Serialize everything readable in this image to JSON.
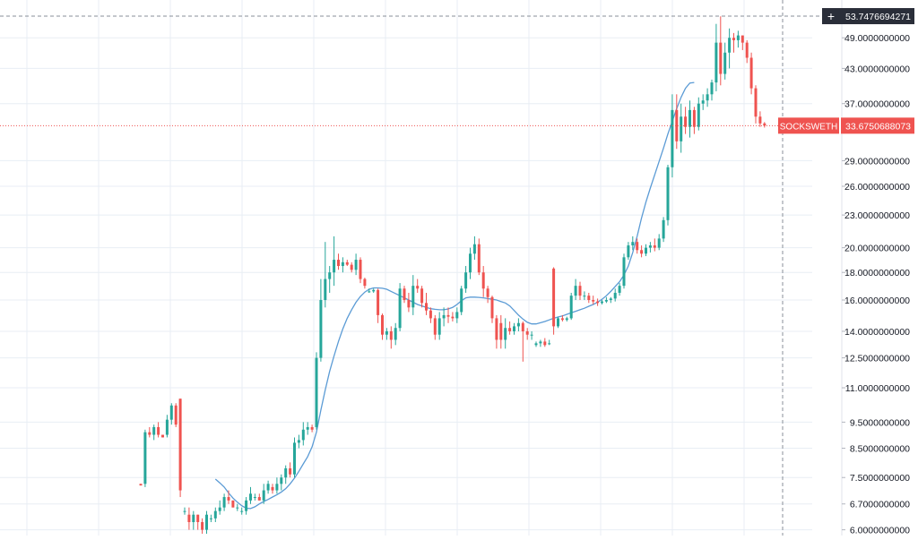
{
  "chart_data": {
    "type": "candlestick",
    "symbol": "SOCKSWETH",
    "last_price": "33.6750688073",
    "crosshair_price": "53.7476694271",
    "y_scale": "log",
    "grid": true,
    "colors": {
      "up": "#26a69a",
      "down": "#ef5350",
      "ma": "#5b9bd5",
      "grid": "#e8eef4",
      "crosshair_label_bg": "#2a2e39",
      "price_label_bg": "#ef5350"
    },
    "y_ticks": [
      "49.0000000000",
      "43.0000000000",
      "37.0000000000",
      "29.0000000000",
      "26.0000000000",
      "23.0000000000",
      "20.0000000000",
      "18.0000000000",
      "16.0000000000",
      "14.0000000000",
      "12.5000000000",
      "11.0000000000",
      "9.5000000000",
      "8.5000000000",
      "7.5000000000",
      "6.7000000000",
      "6.0000000000"
    ],
    "y_tick_values": [
      49,
      43,
      37,
      29,
      26,
      23,
      20,
      18,
      16,
      14,
      12.5,
      11,
      9.5,
      8.5,
      7.5,
      6.7,
      6.0
    ],
    "y_range": [
      5.9,
      55
    ],
    "candles": [
      [
        7.3,
        7.3,
        7.25,
        7.25
      ],
      [
        7.3,
        9.2,
        7.2,
        9.1
      ],
      [
        9.1,
        9.3,
        8.9,
        9.0
      ],
      [
        9.0,
        9.4,
        8.8,
        9.3
      ],
      [
        9.3,
        9.5,
        8.9,
        9.0
      ],
      [
        9.0,
        9.0,
        8.9,
        8.9
      ],
      [
        9.0,
        9.8,
        8.9,
        9.6
      ],
      [
        9.6,
        10.3,
        9.4,
        10.2
      ],
      [
        10.2,
        10.3,
        9.3,
        9.4
      ],
      [
        10.5,
        10.5,
        6.9,
        7.1
      ],
      [
        6.5,
        6.6,
        6.4,
        6.5
      ],
      [
        6.4,
        6.6,
        6.0,
        6.2
      ],
      [
        6.2,
        6.5,
        6.0,
        6.4
      ],
      [
        6.4,
        6.4,
        6.0,
        6.2
      ],
      [
        6.2,
        6.3,
        5.9,
        6.0
      ],
      [
        6.0,
        6.5,
        5.9,
        6.4
      ],
      [
        6.3,
        6.4,
        6.2,
        6.3
      ],
      [
        6.3,
        6.6,
        6.2,
        6.5
      ],
      [
        6.5,
        6.8,
        6.4,
        6.6
      ],
      [
        6.6,
        7.0,
        6.5,
        6.9
      ],
      [
        6.9,
        7.1,
        6.7,
        6.8
      ],
      [
        6.8,
        6.8,
        6.6,
        6.6
      ],
      [
        6.6,
        6.7,
        6.5,
        6.6
      ],
      [
        6.5,
        6.6,
        6.4,
        6.5
      ],
      [
        6.5,
        6.9,
        6.4,
        6.8
      ],
      [
        6.8,
        7.2,
        6.7,
        7.0
      ],
      [
        6.9,
        7.0,
        6.8,
        6.9
      ],
      [
        6.9,
        7.0,
        6.8,
        6.8
      ],
      [
        6.8,
        7.3,
        6.7,
        7.1
      ],
      [
        7.1,
        7.4,
        7.0,
        7.3
      ],
      [
        7.2,
        7.3,
        7.0,
        7.1
      ],
      [
        7.1,
        7.5,
        7.0,
        7.3
      ],
      [
        7.3,
        7.6,
        7.1,
        7.5
      ],
      [
        7.5,
        7.9,
        7.3,
        7.8
      ],
      [
        7.8,
        8.0,
        7.5,
        7.6
      ],
      [
        7.6,
        8.9,
        7.5,
        8.7
      ],
      [
        8.7,
        9.0,
        8.5,
        8.8
      ],
      [
        8.8,
        9.5,
        8.6,
        9.2
      ],
      [
        9.2,
        9.5,
        9.0,
        9.3
      ],
      [
        9.3,
        9.4,
        9.1,
        9.2
      ],
      [
        9.3,
        12.8,
        9.2,
        12.5
      ],
      [
        12.5,
        17.5,
        12.3,
        16.0
      ],
      [
        16.0,
        20.5,
        15.5,
        17.5
      ],
      [
        17.5,
        18.5,
        16.5,
        18.0
      ],
      [
        18.0,
        21.0,
        17.0,
        19.0
      ],
      [
        19.0,
        19.5,
        18.2,
        18.5
      ],
      [
        18.5,
        19.2,
        18.0,
        18.8
      ],
      [
        18.8,
        19.0,
        18.5,
        18.6
      ],
      [
        18.6,
        18.8,
        18.0,
        18.2
      ],
      [
        18.2,
        19.5,
        17.8,
        19.0
      ],
      [
        19.0,
        19.2,
        17.2,
        17.5
      ],
      [
        17.5,
        17.6,
        16.8,
        17.0
      ],
      [
        16.6,
        16.8,
        16.5,
        16.6
      ],
      [
        16.6,
        16.8,
        16.5,
        16.7
      ],
      [
        16.7,
        16.8,
        14.5,
        15.0
      ],
      [
        15.0,
        15.1,
        13.5,
        13.8
      ],
      [
        13.8,
        14.2,
        13.5,
        14.0
      ],
      [
        14.0,
        14.3,
        13.0,
        13.5
      ],
      [
        13.5,
        14.5,
        13.2,
        14.2
      ],
      [
        14.2,
        17.2,
        14.0,
        16.8
      ],
      [
        16.8,
        17.0,
        15.8,
        16.0
      ],
      [
        16.0,
        16.5,
        15.2,
        15.5
      ],
      [
        15.5,
        17.8,
        15.0,
        17.0
      ],
      [
        17.0,
        17.5,
        16.5,
        16.8
      ],
      [
        16.8,
        17.0,
        15.5,
        15.8
      ],
      [
        15.8,
        16.5,
        15.0,
        15.3
      ],
      [
        15.3,
        15.5,
        14.5,
        14.8
      ],
      [
        14.8,
        15.0,
        13.5,
        13.8
      ],
      [
        13.8,
        15.2,
        13.5,
        14.8
      ],
      [
        14.8,
        15.5,
        14.3,
        15.0
      ],
      [
        15.0,
        15.5,
        14.5,
        14.9
      ],
      [
        14.9,
        15.2,
        14.6,
        14.8
      ],
      [
        14.8,
        15.5,
        14.5,
        15.2
      ],
      [
        15.2,
        17.0,
        15.0,
        16.8
      ],
      [
        16.8,
        18.5,
        16.5,
        18.0
      ],
      [
        18.0,
        20.0,
        17.5,
        19.5
      ],
      [
        19.5,
        21.0,
        19.0,
        20.3
      ],
      [
        20.3,
        20.8,
        17.8,
        18.0
      ],
      [
        18.0,
        18.5,
        16.2,
        16.8
      ],
      [
        16.8,
        17.0,
        15.8,
        16.2
      ],
      [
        16.2,
        16.3,
        14.5,
        14.8
      ],
      [
        14.8,
        15.0,
        13.0,
        13.5
      ],
      [
        14.5,
        15.0,
        13.0,
        13.5
      ],
      [
        13.5,
        14.8,
        13.0,
        14.2
      ],
      [
        14.2,
        14.6,
        13.8,
        14.0
      ],
      [
        14.0,
        14.5,
        13.8,
        14.3
      ],
      [
        14.3,
        14.8,
        14.0,
        14.5
      ],
      [
        14.5,
        14.6,
        12.3,
        14.0
      ],
      [
        14.0,
        14.2,
        13.5,
        13.8
      ],
      [
        13.8,
        14.0,
        13.5,
        13.8
      ],
      [
        13.2,
        13.4,
        13.1,
        13.3
      ],
      [
        13.3,
        13.5,
        13.1,
        13.4
      ],
      [
        13.4,
        13.6,
        13.1,
        13.2
      ],
      [
        13.3,
        13.5,
        13.2,
        13.3
      ],
      [
        18.3,
        18.4,
        13.8,
        14.3
      ],
      [
        14.3,
        14.9,
        14.2,
        14.8
      ],
      [
        14.8,
        15.0,
        14.6,
        14.7
      ],
      [
        14.7,
        14.9,
        14.6,
        14.8
      ],
      [
        14.8,
        16.5,
        14.7,
        16.3
      ],
      [
        16.3,
        17.5,
        16.0,
        17.0
      ],
      [
        17.0,
        17.3,
        16.0,
        16.3
      ],
      [
        16.3,
        16.6,
        16.0,
        16.3
      ],
      [
        16.3,
        16.5,
        15.8,
        16.0
      ],
      [
        16.0,
        16.3,
        15.7,
        15.9
      ],
      [
        15.9,
        16.1,
        15.6,
        15.8
      ],
      [
        15.8,
        16.0,
        15.7,
        15.9
      ],
      [
        15.9,
        16.2,
        15.8,
        16.0
      ],
      [
        16.0,
        16.2,
        15.8,
        16.1
      ],
      [
        16.1,
        16.8,
        15.9,
        16.5
      ],
      [
        16.5,
        17.2,
        16.3,
        17.0
      ],
      [
        17.0,
        19.5,
        16.8,
        19.2
      ],
      [
        19.2,
        20.5,
        19.0,
        20.2
      ],
      [
        20.2,
        21.0,
        19.8,
        20.5
      ],
      [
        20.5,
        20.8,
        19.5,
        19.8
      ],
      [
        19.8,
        20.2,
        19.2,
        19.5
      ],
      [
        19.5,
        20.3,
        19.3,
        20.0
      ],
      [
        20.0,
        20.5,
        19.6,
        20.2
      ],
      [
        20.2,
        20.8,
        19.7,
        20.0
      ],
      [
        20.0,
        21.2,
        19.8,
        20.8
      ],
      [
        20.8,
        22.8,
        20.5,
        22.5
      ],
      [
        22.5,
        28.5,
        22.0,
        28.2
      ],
      [
        28.2,
        38.5,
        27.0,
        36.0
      ],
      [
        36.0,
        38.5,
        30.5,
        31.5
      ],
      [
        31.5,
        37.0,
        30.0,
        35.0
      ],
      [
        35.0,
        36.5,
        32.5,
        33.5
      ],
      [
        33.5,
        37.5,
        32.0,
        36.0
      ],
      [
        36.0,
        36.5,
        32.5,
        33.5
      ],
      [
        33.5,
        38.0,
        33.0,
        37.0
      ],
      [
        37.0,
        38.5,
        36.0,
        37.5
      ],
      [
        37.5,
        39.5,
        36.5,
        38.5
      ],
      [
        38.5,
        41.0,
        37.5,
        40.5
      ],
      [
        40.5,
        52.0,
        39.0,
        48.0
      ],
      [
        48.0,
        53.7,
        40.0,
        42.0
      ],
      [
        42.0,
        48.0,
        41.0,
        46.0
      ],
      [
        46.0,
        51.0,
        43.0,
        49.0
      ],
      [
        49.0,
        50.0,
        46.0,
        48.5
      ],
      [
        48.5,
        50.5,
        47.0,
        49.5
      ],
      [
        49.5,
        49.5,
        46.5,
        48.0
      ],
      [
        48.0,
        48.5,
        44.0,
        45.0
      ],
      [
        45.0,
        46.0,
        38.5,
        39.5
      ],
      [
        39.5,
        40.0,
        34.0,
        35.0
      ],
      [
        35.0,
        35.8,
        33.5,
        34.0
      ],
      [
        34.0,
        34.2,
        33.4,
        33.68
      ]
    ],
    "moving_average": {
      "start_index": 17,
      "values": [
        7.45,
        7.33,
        7.2,
        7.02,
        6.87,
        6.75,
        6.65,
        6.58,
        6.57,
        6.62,
        6.7,
        6.77,
        6.83,
        6.9,
        6.97,
        7.05,
        7.15,
        7.3,
        7.48,
        7.7,
        7.95,
        8.2,
        8.55,
        9.1,
        10.0,
        10.9,
        11.8,
        12.6,
        13.4,
        14.15,
        14.8,
        15.35,
        15.85,
        16.25,
        16.55,
        16.75,
        16.85,
        16.85,
        16.82,
        16.75,
        16.6,
        16.45,
        16.3,
        16.15,
        16.0,
        15.85,
        15.7,
        15.6,
        15.5,
        15.42,
        15.38,
        15.35,
        15.35,
        15.4,
        15.5,
        15.7,
        15.95,
        16.15,
        16.2,
        16.2,
        16.18,
        16.15,
        16.1,
        16.05,
        16.0,
        15.9,
        15.8,
        15.6,
        15.3,
        15.0,
        14.75,
        14.55,
        14.45,
        14.45,
        14.52,
        14.6,
        14.7,
        14.8,
        14.88,
        14.95,
        15.05,
        15.15,
        15.25,
        15.35,
        15.45,
        15.58,
        15.7,
        15.85,
        16.05,
        16.3,
        16.6,
        16.95,
        17.3,
        17.8,
        18.5,
        19.6,
        21.0,
        22.7,
        24.3,
        25.8,
        27.3,
        28.9,
        30.6,
        32.5,
        34.3,
        36.2,
        38.0,
        39.5,
        40.4,
        40.5
      ]
    }
  }
}
